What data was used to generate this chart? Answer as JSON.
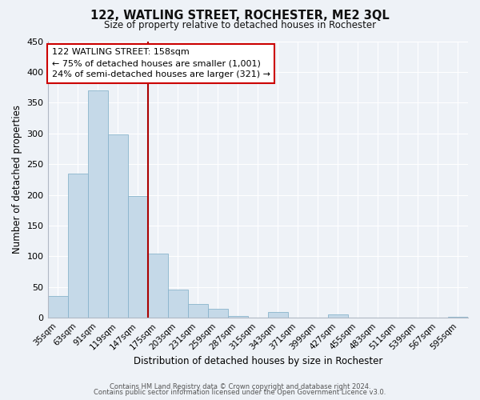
{
  "title": "122, WATLING STREET, ROCHESTER, ME2 3QL",
  "subtitle": "Size of property relative to detached houses in Rochester",
  "xlabel": "Distribution of detached houses by size in Rochester",
  "ylabel": "Number of detached properties",
  "bar_labels": [
    "35sqm",
    "63sqm",
    "91sqm",
    "119sqm",
    "147sqm",
    "175sqm",
    "203sqm",
    "231sqm",
    "259sqm",
    "287sqm",
    "315sqm",
    "343sqm",
    "371sqm",
    "399sqm",
    "427sqm",
    "455sqm",
    "483sqm",
    "511sqm",
    "539sqm",
    "567sqm",
    "595sqm"
  ],
  "bar_values": [
    35,
    235,
    370,
    298,
    198,
    105,
    46,
    22,
    14,
    3,
    0,
    10,
    0,
    0,
    5,
    0,
    0,
    0,
    0,
    0,
    2
  ],
  "bar_color": "#c5d9e8",
  "bar_edgecolor": "#8ab4cc",
  "vline_color": "#aa0000",
  "annotation_title": "122 WATLING STREET: 158sqm",
  "annotation_line1": "← 75% of detached houses are smaller (1,001)",
  "annotation_line2": "24% of semi-detached houses are larger (321) →",
  "annotation_box_edgecolor": "#cc0000",
  "ylim": [
    0,
    450
  ],
  "yticks": [
    0,
    50,
    100,
    150,
    200,
    250,
    300,
    350,
    400,
    450
  ],
  "footer1": "Contains HM Land Registry data © Crown copyright and database right 2024.",
  "footer2": "Contains public sector information licensed under the Open Government Licence v3.0.",
  "bg_color": "#eef2f7",
  "plot_bg_color": "#eef2f7",
  "grid_color": "#ffffff",
  "title_fontsize": 10.5,
  "subtitle_fontsize": 8.5
}
